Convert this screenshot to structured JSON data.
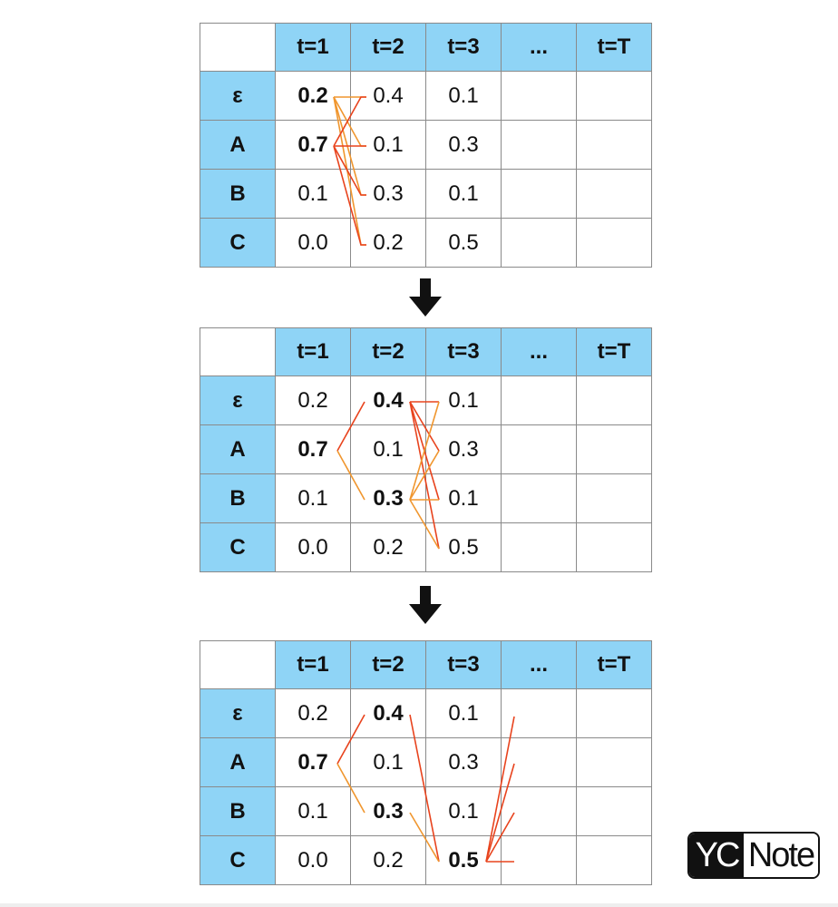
{
  "tables": [
    {
      "columns": [
        "t=1",
        "t=2",
        "t=3",
        "...",
        "t=T"
      ],
      "rows": [
        {
          "label": "ε",
          "cells": [
            "0.2",
            "0.4",
            "0.1",
            "",
            ""
          ]
        },
        {
          "label": "A",
          "cells": [
            "0.7",
            "0.1",
            "0.3",
            "",
            ""
          ]
        },
        {
          "label": "B",
          "cells": [
            "0.1",
            "0.3",
            "0.1",
            "",
            ""
          ]
        },
        {
          "label": "C",
          "cells": [
            "0.0",
            "0.2",
            "0.5",
            "",
            ""
          ]
        }
      ],
      "highlights": [
        {
          "row": 0,
          "col": 0,
          "color": "orange"
        },
        {
          "row": 1,
          "col": 0,
          "color": "red"
        }
      ]
    },
    {
      "columns": [
        "t=1",
        "t=2",
        "t=3",
        "...",
        "t=T"
      ],
      "rows": [
        {
          "label": "ε",
          "cells": [
            "0.2",
            "0.4",
            "0.1",
            "",
            ""
          ]
        },
        {
          "label": "A",
          "cells": [
            "0.7",
            "0.1",
            "0.3",
            "",
            ""
          ]
        },
        {
          "label": "B",
          "cells": [
            "0.1",
            "0.3",
            "0.1",
            "",
            ""
          ]
        },
        {
          "label": "C",
          "cells": [
            "0.0",
            "0.2",
            "0.5",
            "",
            ""
          ]
        }
      ],
      "highlights": [
        {
          "row": 1,
          "col": 0,
          "color": "red"
        },
        {
          "row": 0,
          "col": 1,
          "color": "red"
        },
        {
          "row": 2,
          "col": 1,
          "color": "orange"
        }
      ]
    },
    {
      "columns": [
        "t=1",
        "t=2",
        "t=3",
        "...",
        "t=T"
      ],
      "rows": [
        {
          "label": "ε",
          "cells": [
            "0.2",
            "0.4",
            "0.1",
            "",
            ""
          ]
        },
        {
          "label": "A",
          "cells": [
            "0.7",
            "0.1",
            "0.3",
            "",
            ""
          ]
        },
        {
          "label": "B",
          "cells": [
            "0.1",
            "0.3",
            "0.1",
            "",
            ""
          ]
        },
        {
          "label": "C",
          "cells": [
            "0.0",
            "0.2",
            "0.5",
            "",
            ""
          ]
        }
      ],
      "highlights": [
        {
          "row": 1,
          "col": 0,
          "color": "red"
        },
        {
          "row": 0,
          "col": 1,
          "color": "red"
        },
        {
          "row": 2,
          "col": 1,
          "color": "orange"
        },
        {
          "row": 3,
          "col": 2,
          "color": "red"
        }
      ]
    }
  ],
  "colors": {
    "header_fill": "#8fd4f6",
    "red": "#e8431d",
    "orange": "#f0962e",
    "grid": "#8a8a8a"
  },
  "arrow_icon": "down-arrow-icon",
  "logo": {
    "part1": "YC",
    "part2": "Note"
  }
}
